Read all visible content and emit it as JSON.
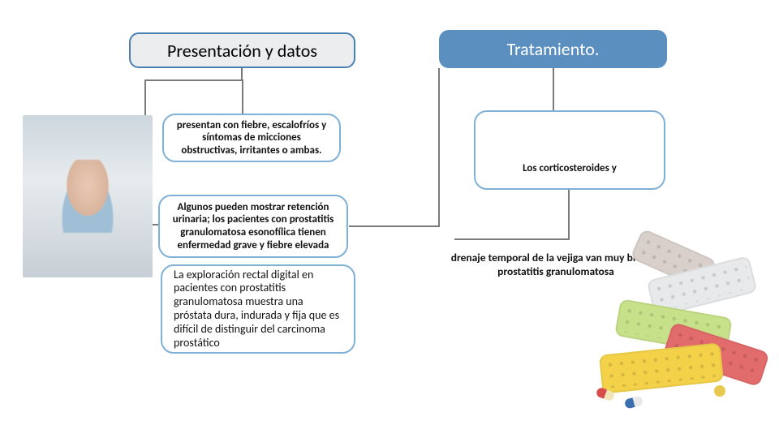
{
  "colors": {
    "accent_blue": "#5b8fc0",
    "accent_blue_border": "#4a7fb2",
    "box_border": "#7fb1d6",
    "header_left_bg": "#ebedef",
    "connector": "#7a7a7a",
    "text": "#111111",
    "white": "#ffffff"
  },
  "typography": {
    "header_fontsize": 22,
    "body_bold_fontsize": 13,
    "body_fontsize": 14
  },
  "left": {
    "header": "Presentación y datos",
    "box_a": "presentan con fiebre, escalofríos y síntomas de micciones obstructivas, irritantes o ambas.",
    "box_b": "Algunos pueden mostrar retención urinaria; los pacientes con prostatitis granulomatosa esonofílica tienen enfermedad grave y fiebre elevada",
    "box_c": "La exploración rectal digital en pacientes con prostatitis granulomatosa muestra una próstata dura, indurada y fija que es difícil de distinguir del carcinoma prostático"
  },
  "right": {
    "header": "Tratamiento.",
    "box_d": "Los corticosteroides y",
    "txt_e": "drenaje temporal de la vejiga van muy bien en prostatitis granulomatosa"
  },
  "images": {
    "left_alt": "sick-person-photo",
    "right_alt": "medication-blister-packs"
  }
}
